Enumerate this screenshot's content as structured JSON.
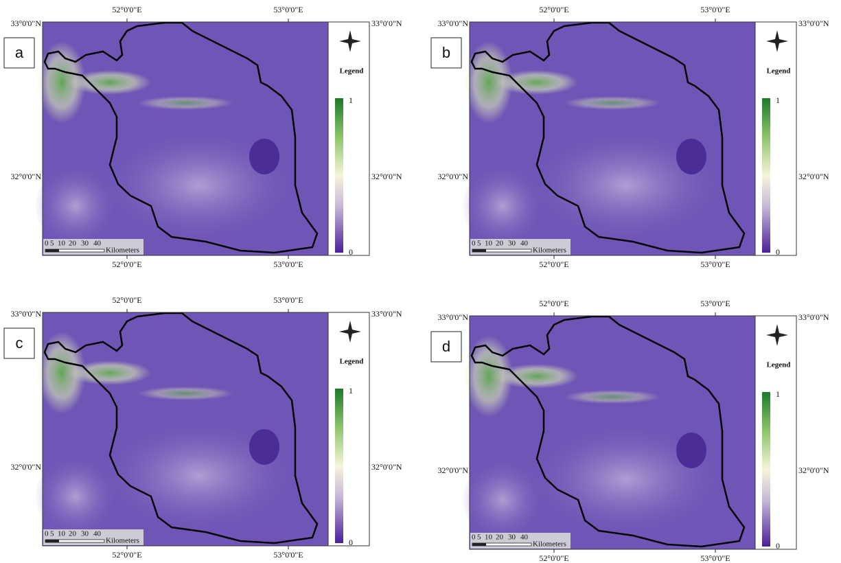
{
  "panels": [
    {
      "label": "a",
      "lon_labels_top": [
        "52°0'0\"E",
        "53°0'0\"E"
      ],
      "lon_labels_bottom": [
        "52°0'0\"E",
        "53°0'0\"E"
      ],
      "lat_labels_left": [
        "33°0'0\"N",
        "32°0'0\"N"
      ],
      "lat_labels_right": [
        "33°0'0\"N",
        "32°0'0\"N"
      ],
      "legend": {
        "title": "Legend",
        "max": "1",
        "min": "0"
      },
      "scale": {
        "ticks": [
          "0",
          "5",
          "10",
          "20",
          "30",
          "40"
        ],
        "unit": "Kilometers"
      }
    },
    {
      "label": "b",
      "lon_labels_top": [
        "52°0'0\"E",
        "53°0'0\"E"
      ],
      "lon_labels_bottom": [
        "52°0'0\"E",
        "53°0'0\"E"
      ],
      "lat_labels_left": [
        "33°0'0\"N",
        "32°0'0\"N"
      ],
      "lat_labels_right": [
        "33°0'0\"N",
        "32°0'0\"N"
      ],
      "legend": {
        "title": "Legend",
        "max": "1",
        "min": "0"
      },
      "scale": {
        "ticks": [
          "0",
          "5",
          "10",
          "20",
          "30",
          "40"
        ],
        "unit": "Kilometers"
      }
    },
    {
      "label": "c",
      "lon_labels_top": [
        "52°0'0\"E",
        "53°0'0\"E"
      ],
      "lon_labels_bottom": [
        "52°0'0\"E",
        "53°0'0\"E"
      ],
      "lat_labels_left": [
        "33°0'0\"N",
        "32°0'0\"N"
      ],
      "lat_labels_right": [
        "33°0'0\"N",
        "32°0'0\"N"
      ],
      "legend": {
        "title": "Legend",
        "max": "1",
        "min": "0"
      },
      "scale": {
        "ticks": [
          "0",
          "5",
          "10",
          "20",
          "30",
          "40"
        ],
        "unit": "Kilometers"
      }
    },
    {
      "label": "d",
      "lon_labels_top": [
        "52°0'0\"E",
        "53°0'0\"E"
      ],
      "lon_labels_bottom": [
        "52°0'0\"E",
        "53°0'0\"E"
      ],
      "lat_labels_left": [
        "33°0'0\"N",
        "32°0'0\"N"
      ],
      "lat_labels_right": [
        "33°0'0\"N",
        "32°0'0\"N"
      ],
      "legend": {
        "title": "Legend",
        "max": "1",
        "min": "0"
      },
      "scale": {
        "ticks": [
          "0",
          "5",
          "10",
          "20",
          "30",
          "40"
        ],
        "unit": "Kilometers"
      }
    }
  ]
}
